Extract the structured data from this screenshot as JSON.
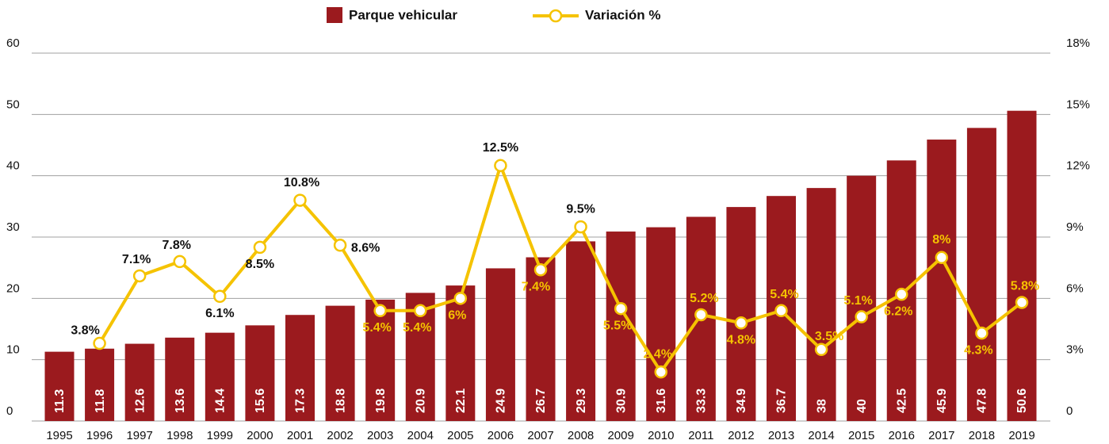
{
  "chart_data": {
    "type": "bar_line",
    "categories": [
      "1995",
      "1996",
      "1997",
      "1998",
      "1999",
      "2000",
      "2001",
      "2002",
      "2003",
      "2004",
      "2005",
      "2006",
      "2007",
      "2008",
      "2009",
      "2010",
      "2011",
      "2012",
      "2013",
      "2014",
      "2015",
      "2016",
      "2017",
      "2018",
      "2019"
    ],
    "series": [
      {
        "name": "Parque vehicular",
        "color": "#9b1a1e",
        "type": "bar",
        "values": [
          11.3,
          11.8,
          12.6,
          13.6,
          14.4,
          15.6,
          17.3,
          18.8,
          19.8,
          20.9,
          22.1,
          24.9,
          26.7,
          29.3,
          30.9,
          31.6,
          33.3,
          34.9,
          36.7,
          38,
          40,
          42.5,
          45.9,
          47.8,
          50.6
        ]
      },
      {
        "name": "Variación %",
        "color": "#f5c300",
        "type": "line",
        "axis": "y2",
        "values": [
          null,
          3.8,
          7.1,
          7.8,
          6.1,
          8.5,
          10.8,
          8.6,
          5.4,
          5.4,
          6,
          12.5,
          7.4,
          9.5,
          5.5,
          2.4,
          5.2,
          4.8,
          5.4,
          3.5,
          5.1,
          6.2,
          8,
          4.3,
          5.8
        ],
        "value_labels": [
          null,
          "3.8%",
          "7.1%",
          "7.8%",
          "6.1%",
          "8.5%",
          "10.8%",
          "8.6%",
          "5.4%",
          "5.4%",
          "6%",
          "12.5%",
          "7.4%",
          "9.5%",
          "5.5%",
          "2.4%",
          "5.2%",
          "4.8%",
          "5.4%",
          "3.5%",
          "5.1%",
          "6.2%",
          "8%",
          "4.3%",
          "5.8%"
        ],
        "value_label_colors": [
          null,
          "#111",
          "#111",
          "#111",
          "#111",
          "#111",
          "#111",
          "#111",
          "#f5c300",
          "#f5c300",
          "#f5c300",
          "#111",
          "#f5c300",
          "#111",
          "#f5c300",
          "#f5c300",
          "#f5c300",
          "#f5c300",
          "#f5c300",
          "#f5c300",
          "#f5c300",
          "#f5c300",
          "#f5c300",
          "#f5c300",
          "#f5c300"
        ]
      }
    ],
    "ylim": [
      0,
      60
    ],
    "yticks": [
      0,
      10,
      20,
      30,
      40,
      50,
      60
    ],
    "y2lim": [
      0,
      18
    ],
    "y2ticks": [
      0,
      {
        "value": 3,
        "label": "3%"
      },
      {
        "value": 6,
        "label": "6%"
      },
      {
        "value": 9,
        "label": "9%"
      },
      {
        "value": 12,
        "label": "12%"
      },
      {
        "value": 15,
        "label": "15%"
      },
      {
        "value": 18,
        "label": "18%"
      }
    ],
    "grid": true,
    "legend": "top"
  }
}
